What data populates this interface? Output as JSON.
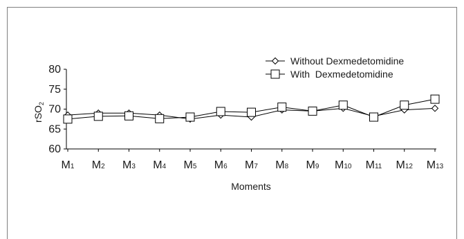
{
  "chart_data": {
    "type": "line",
    "title": "",
    "xlabel": "Moments",
    "ylabel": "rSO",
    "ylabel_sub": "2",
    "ylim": [
      60,
      80
    ],
    "yticks": [
      60,
      65,
      70,
      75,
      80
    ],
    "categories": [
      "M1",
      "M2",
      "M3",
      "M4",
      "M5",
      "M6",
      "M7",
      "M8",
      "M9",
      "M10",
      "M11",
      "M12",
      "M13"
    ],
    "category_labels": [
      {
        "base": "M",
        "sub": "1"
      },
      {
        "base": "M",
        "sub": "2"
      },
      {
        "base": "M",
        "sub": "3"
      },
      {
        "base": "M",
        "sub": "4"
      },
      {
        "base": "M",
        "sub": "5"
      },
      {
        "base": "M",
        "sub": "6"
      },
      {
        "base": "M",
        "sub": "7"
      },
      {
        "base": "M",
        "sub": "8"
      },
      {
        "base": "M",
        "sub": "9"
      },
      {
        "base": "M",
        "sub": "10"
      },
      {
        "base": "M",
        "sub": "11"
      },
      {
        "base": "M",
        "sub": "12"
      },
      {
        "base": "M",
        "sub": "13"
      }
    ],
    "legend_position": "top-right",
    "grid": false,
    "series": [
      {
        "name": "Without Dexmedetomidine",
        "marker": "diamond",
        "values": [
          68.5,
          69,
          69,
          68.5,
          67.5,
          68.5,
          68,
          69.8,
          69.5,
          70.2,
          68.2,
          69.8,
          70.2
        ]
      },
      {
        "name": "With  Dexmedetomidine",
        "marker": "square",
        "values": [
          67.5,
          68.2,
          68.3,
          67.6,
          68,
          69.4,
          69.2,
          70.5,
          69.5,
          71,
          68,
          71,
          72.5
        ]
      }
    ]
  }
}
